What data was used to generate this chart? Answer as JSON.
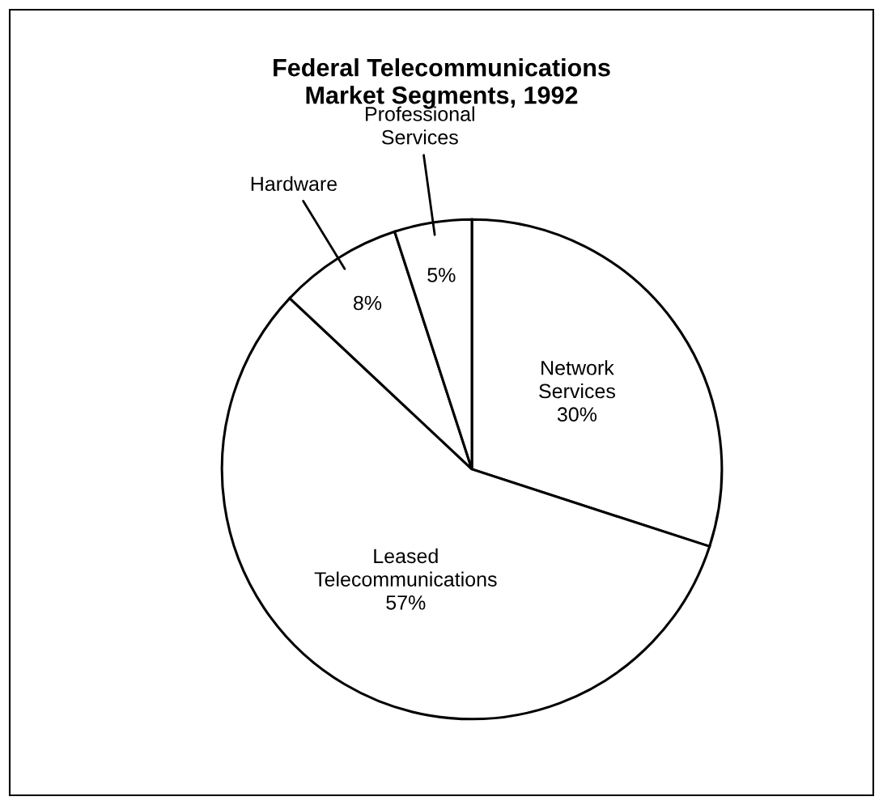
{
  "chart_data": {
    "type": "pie",
    "title": "Federal Telecommunications\nMarket Segments, 1992",
    "categories": [
      "Network\nServices",
      "Leased\nTelecommunications",
      "Hardware",
      "Professional\nServices"
    ],
    "values": [
      30,
      57,
      8,
      5
    ],
    "colors": [
      "#ffffff",
      "#ffffff",
      "#ffffff",
      "#ffffff"
    ],
    "value_labels": [
      "30%",
      "57%",
      "8%",
      "5%"
    ]
  }
}
